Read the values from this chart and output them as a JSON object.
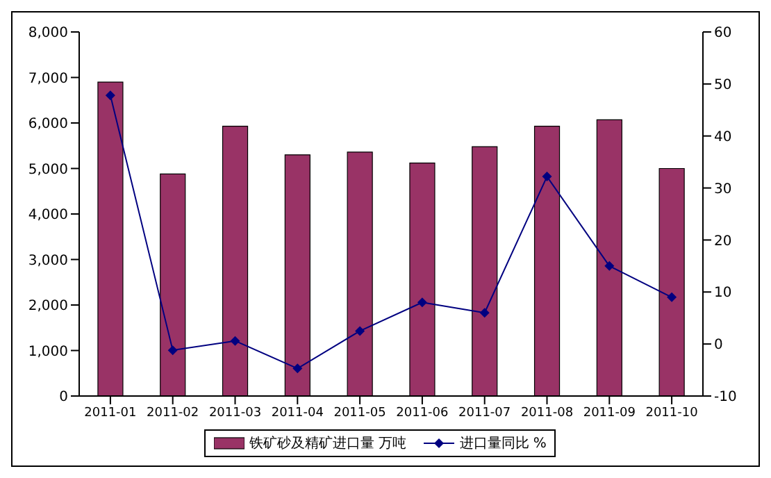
{
  "chart_data": {
    "type": "bar",
    "categories": [
      "2011-01",
      "2011-02",
      "2011-03",
      "2011-04",
      "2011-05",
      "2011-06",
      "2011-07",
      "2011-08",
      "2011-09",
      "2011-10"
    ],
    "series": [
      {
        "name": "铁矿砂及精矿进口量 万吨",
        "color": "#993366",
        "values": [
          6900,
          4880,
          5930,
          5300,
          5360,
          5120,
          5480,
          5930,
          6070,
          5000
        ]
      },
      {
        "name": "进口量同比 %",
        "type": "line",
        "axis": "y2",
        "color": "#000080",
        "marker": "diamond",
        "values": [
          47.8,
          -1.2,
          0.6,
          -4.7,
          2.5,
          8.0,
          6.0,
          32.2,
          15.0,
          9.0
        ]
      }
    ],
    "ylim": [
      0,
      8000
    ],
    "yticks": [
      {
        "value": 0,
        "label": "0"
      },
      {
        "value": 1000,
        "label": "1,000"
      },
      {
        "value": 2000,
        "label": "2,000"
      },
      {
        "value": 3000,
        "label": "3,000"
      },
      {
        "value": 4000,
        "label": "4,000"
      },
      {
        "value": 5000,
        "label": "5,000"
      },
      {
        "value": 6000,
        "label": "6,000"
      },
      {
        "value": 7000,
        "label": "7,000"
      },
      {
        "value": 8000,
        "label": "8,000"
      }
    ],
    "y2lim": [
      -10,
      60
    ],
    "y2ticks": [
      -10,
      0,
      10,
      20,
      30,
      40,
      50,
      60
    ],
    "legend": "bottom"
  }
}
